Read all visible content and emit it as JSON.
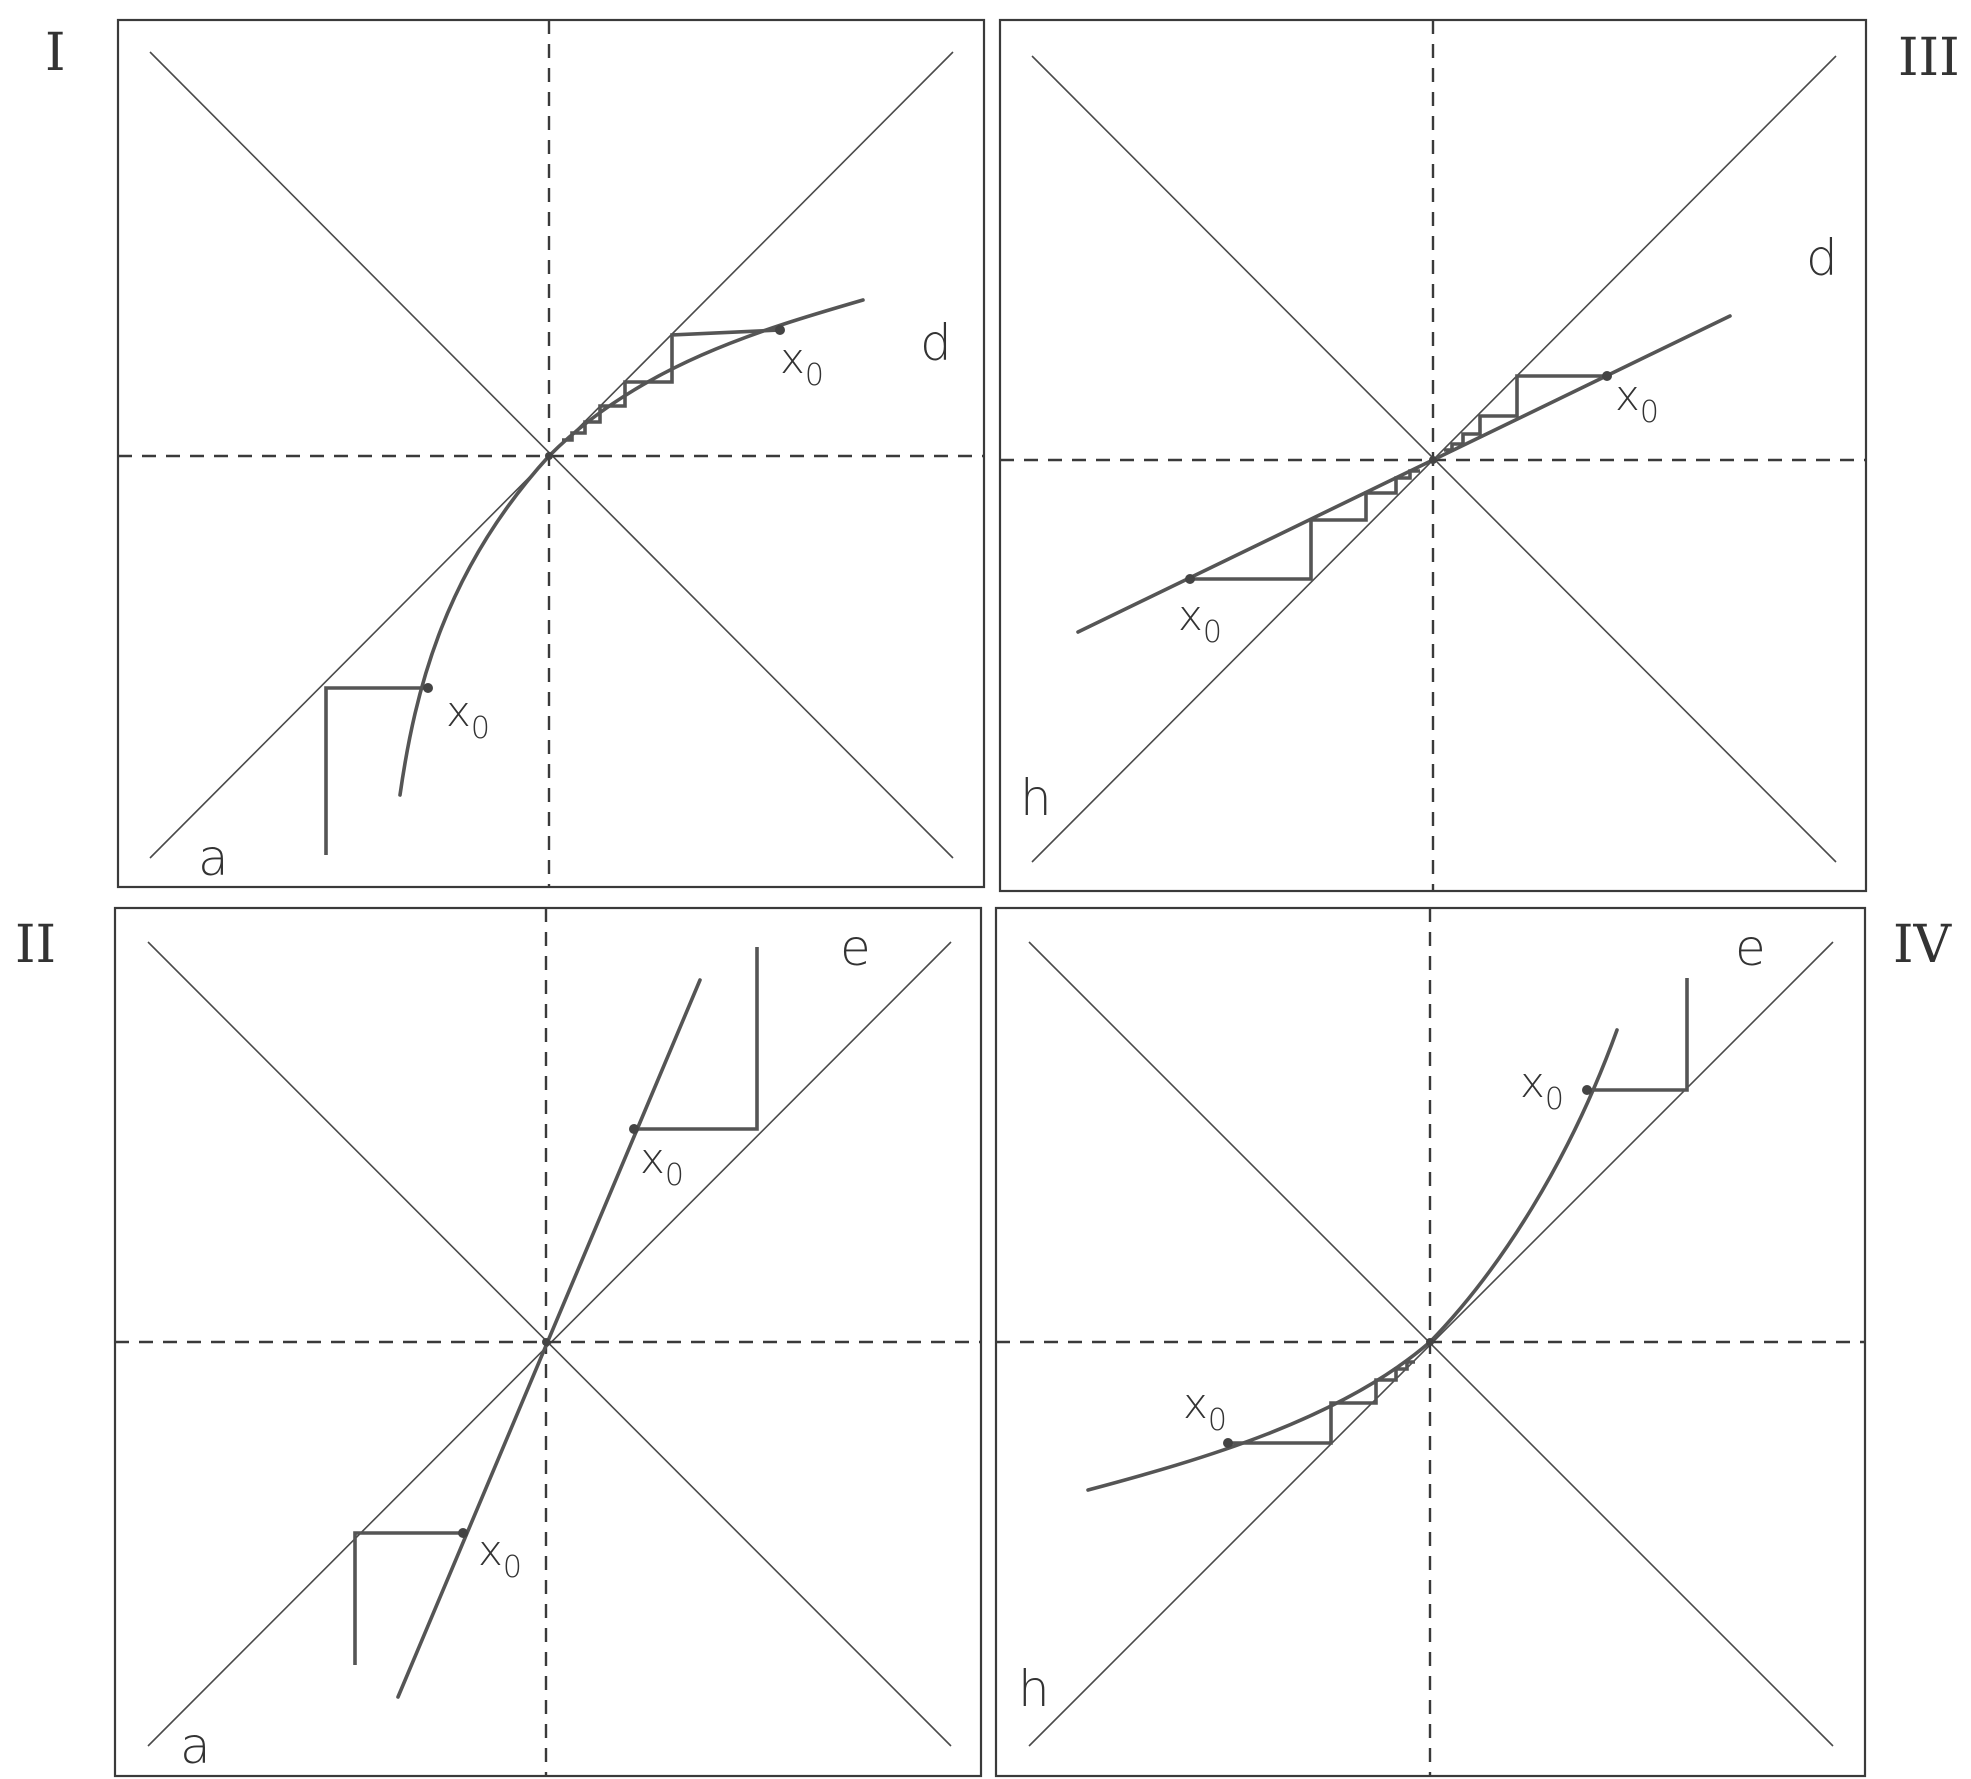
{
  "panels": [
    {
      "numeral": "I",
      "corner_a": "d",
      "corner_b": "a",
      "x0_label": "x",
      "x0_sub": "0"
    },
    {
      "numeral": "III",
      "corner_a": "d",
      "corner_b": "h",
      "x0_label": "x",
      "x0_sub": "0"
    },
    {
      "numeral": "II",
      "corner_a": "e",
      "corner_b": "a",
      "x0_label": "x",
      "x0_sub": "0"
    },
    {
      "numeral": "IV",
      "corner_a": "e",
      "corner_b": "h",
      "x0_label": "x",
      "x0_sub": "0"
    }
  ]
}
